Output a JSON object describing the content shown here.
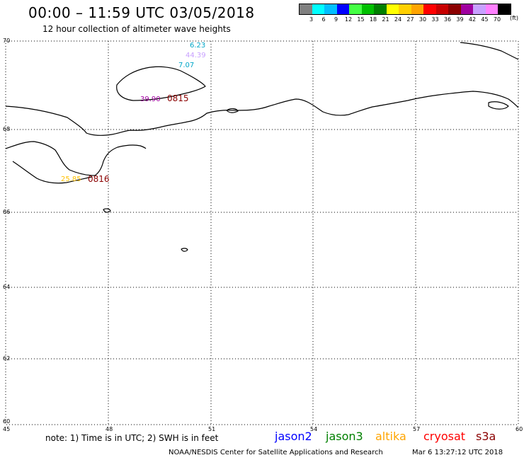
{
  "header": {
    "title": "00:00 – 11:59 UTC 03/05/2018",
    "subtitle": "12 hour collection of altimeter wave heights"
  },
  "legend": {
    "colors": [
      "#808080",
      "#00ffff",
      "#00bfff",
      "#0000ff",
      "#44ff44",
      "#00c000",
      "#008000",
      "#ffff00",
      "#ffd000",
      "#ffa500",
      "#ff0000",
      "#c80000",
      "#8b0000",
      "#a000a0",
      "#c8a0ff",
      "#ff80ff",
      "#000000"
    ],
    "labels": [
      "3",
      "6",
      "9",
      "12",
      "15",
      "18",
      "21",
      "24",
      "27",
      "30",
      "33",
      "36",
      "39",
      "42",
      "45",
      "70"
    ],
    "unit": "(ft)"
  },
  "map": {
    "lat_labels": [
      "70",
      "68",
      "66",
      "64",
      "62",
      "60"
    ],
    "lon_labels": [
      "45",
      "48",
      "51",
      "54",
      "57",
      "60"
    ],
    "annotations": [
      {
        "text": "6.23",
        "color": "#00a6c8"
      },
      {
        "text": "44.39",
        "color": "#c8a0ff"
      },
      {
        "text": "7.07",
        "color": "#00a6c8"
      },
      {
        "text": "39.90",
        "color": "#a000a0"
      },
      {
        "text": "0815",
        "color": "#8b0000"
      },
      {
        "text": "25.85",
        "color": "#ffc000"
      },
      {
        "text": "0816",
        "color": "#8b0000"
      }
    ]
  },
  "footer": {
    "note": "note: 1) Time is in UTC; 2) SWH is in feet",
    "satellites": [
      {
        "name": "jason2",
        "color": "#0000ff"
      },
      {
        "name": "jason3",
        "color": "#008000"
      },
      {
        "name": "altika",
        "color": "#ffa500"
      },
      {
        "name": "cryosat",
        "color": "#ff0000"
      },
      {
        "name": "s3a",
        "color": "#8b0000"
      }
    ],
    "credit": "NOAA/NESDIS Center for Satellite Applications and Research",
    "timestamp": "Mar  6 13:27:12 UTC 2018"
  }
}
